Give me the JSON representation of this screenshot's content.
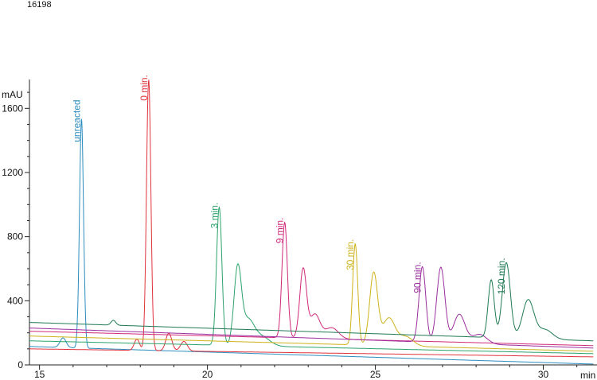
{
  "header": {
    "id_label": "16198"
  },
  "chart_data": {
    "type": "line",
    "title": "",
    "xlabel": "min",
    "ylabel": "mAU",
    "xlim": [
      14.7,
      31.6
    ],
    "ylim": [
      0,
      1780
    ],
    "x_ticks": [
      15,
      20,
      25,
      30
    ],
    "y_ticks": [
      0,
      400,
      800,
      1200,
      1600
    ],
    "grid": false,
    "series": [
      {
        "name": "unreacted",
        "color": "#2b8cbe",
        "baseline": [
          [
            14.7,
            115
          ],
          [
            31.5,
            5
          ]
        ],
        "peaks": [
          {
            "rt": 15.7,
            "h": 60,
            "w": 0.09
          },
          {
            "rt": 16.25,
            "h": 1430,
            "w": 0.06
          }
        ]
      },
      {
        "name": "0 min.",
        "color": "#e0323c",
        "baseline": [
          [
            14.7,
            100
          ],
          [
            31.5,
            50
          ]
        ],
        "peaks": [
          {
            "rt": 17.9,
            "h": 70,
            "w": 0.08
          },
          {
            "rt": 18.25,
            "h": 1690,
            "w": 0.065
          },
          {
            "rt": 18.85,
            "h": 110,
            "w": 0.09
          },
          {
            "rt": 19.3,
            "h": 60,
            "w": 0.1
          }
        ]
      },
      {
        "name": "3 min.",
        "color": "#2ba36b",
        "baseline": [
          [
            14.7,
            150
          ],
          [
            31.5,
            70
          ]
        ],
        "peaks": [
          {
            "rt": 20.35,
            "h": 860,
            "w": 0.08
          },
          {
            "rt": 20.9,
            "h": 470,
            "w": 0.11
          },
          {
            "rt": 21.2,
            "h": 150,
            "w": 0.18
          },
          {
            "rt": 21.6,
            "h": 60,
            "w": 0.25
          }
        ]
      },
      {
        "name": "9 min.",
        "color": "#d0287a",
        "baseline": [
          [
            14.7,
            210
          ],
          [
            31.5,
            120
          ]
        ],
        "peaks": [
          {
            "rt": 22.3,
            "h": 720,
            "w": 0.08
          },
          {
            "rt": 22.85,
            "h": 430,
            "w": 0.1
          },
          {
            "rt": 23.2,
            "h": 150,
            "w": 0.15
          },
          {
            "rt": 23.7,
            "h": 70,
            "w": 0.2
          }
        ]
      },
      {
        "name": "30 min.",
        "color": "#cdb21a",
        "baseline": [
          [
            14.7,
            180
          ],
          [
            31.5,
            85
          ]
        ],
        "peaks": [
          {
            "rt": 24.4,
            "h": 630,
            "w": 0.075
          },
          {
            "rt": 24.95,
            "h": 450,
            "w": 0.12
          },
          {
            "rt": 25.4,
            "h": 170,
            "w": 0.18
          },
          {
            "rt": 25.9,
            "h": 60,
            "w": 0.22
          }
        ]
      },
      {
        "name": "90 min.",
        "color": "#9b2f9e",
        "baseline": [
          [
            14.7,
            230
          ],
          [
            31.5,
            105
          ]
        ],
        "peaks": [
          {
            "rt": 26.4,
            "h": 470,
            "w": 0.1
          },
          {
            "rt": 26.95,
            "h": 470,
            "w": 0.12
          },
          {
            "rt": 27.5,
            "h": 180,
            "w": 0.17
          },
          {
            "rt": 28.1,
            "h": 60,
            "w": 0.22
          }
        ]
      },
      {
        "name": "120 min.",
        "color": "#1f7a54",
        "baseline": [
          [
            14.7,
            265
          ],
          [
            31.5,
            150
          ]
        ],
        "peaks": [
          {
            "rt": 17.2,
            "h": 30,
            "w": 0.07
          },
          {
            "rt": 28.45,
            "h": 360,
            "w": 0.09
          },
          {
            "rt": 28.9,
            "h": 470,
            "w": 0.12
          },
          {
            "rt": 29.55,
            "h": 240,
            "w": 0.17
          },
          {
            "rt": 30.05,
            "h": 60,
            "w": 0.22
          }
        ]
      }
    ]
  }
}
